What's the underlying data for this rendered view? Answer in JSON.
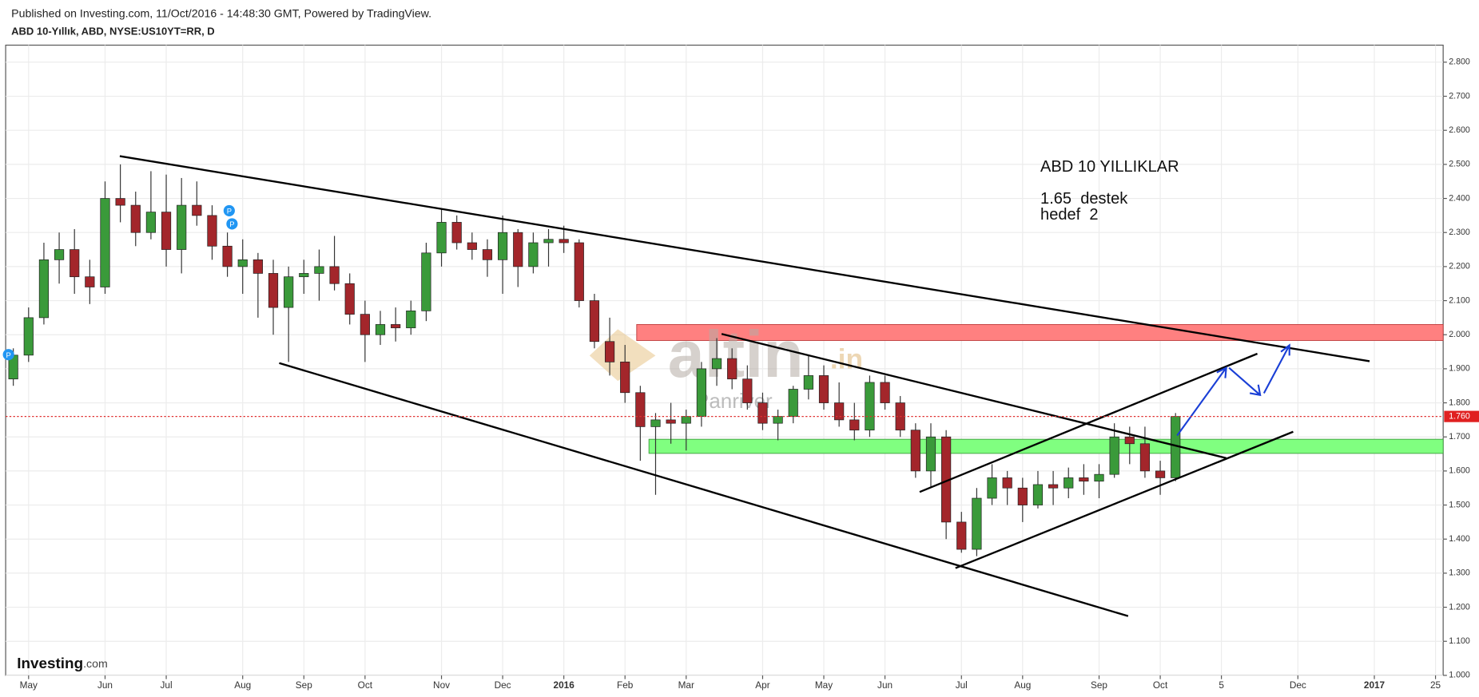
{
  "header": {
    "published": "Published on Investing.com, 11/Oct/2016 - 14:48:30 GMT, Powered by TradingView.",
    "symbol": "ABD 10-Yıllık, ABD, NYSE:US10YT=RR, D"
  },
  "chart_data": {
    "type": "candlestick",
    "categories": [
      null,
      "May",
      null,
      null,
      null,
      null,
      "Jun",
      null,
      null,
      null,
      "Jul",
      null,
      null,
      null,
      null,
      "Aug",
      null,
      null,
      null,
      "Sep",
      null,
      null,
      null,
      "Oct",
      null,
      null,
      null,
      null,
      "Nov",
      null,
      null,
      null,
      "Dec",
      null,
      null,
      null,
      "2016",
      null,
      null,
      null,
      "Feb",
      null,
      null,
      null,
      "Mar",
      null,
      null,
      null,
      null,
      "Apr",
      null,
      null,
      null,
      "May",
      null,
      null,
      null,
      "Jun",
      null,
      null,
      null,
      null,
      "Jul",
      null,
      null,
      null,
      "Aug",
      null,
      null,
      null,
      null,
      "Sep",
      null,
      null,
      null,
      "Oct",
      null,
      null,
      null,
      "5",
      null,
      null,
      null,
      null,
      "Dec",
      null,
      null,
      null,
      null,
      "2017",
      null,
      null,
      null,
      "25"
    ],
    "open": [
      1.87,
      1.94,
      2.05,
      2.22,
      2.25,
      2.17,
      2.14,
      2.4,
      2.38,
      2.3,
      2.36,
      2.25,
      2.38,
      2.35,
      2.26,
      2.2,
      2.22,
      2.18,
      2.08,
      2.17,
      2.18,
      2.2,
      2.15,
      2.06,
      2.0,
      2.03,
      2.02,
      2.07,
      2.24,
      2.33,
      2.27,
      2.25,
      2.22,
      2.3,
      2.2,
      2.27,
      2.28,
      2.27,
      2.1,
      1.98,
      1.92,
      1.83,
      1.73,
      1.75,
      1.74,
      1.76,
      1.9,
      1.93,
      1.87,
      1.8,
      1.74,
      1.76,
      1.84,
      1.88,
      1.8,
      1.75,
      1.72,
      1.86,
      1.8,
      1.72,
      1.6,
      1.7,
      1.45,
      1.37,
      1.52,
      1.58,
      1.55,
      1.5,
      1.56,
      1.55,
      1.58,
      1.57,
      1.59,
      1.7,
      1.68,
      1.6,
      1.58,
      null,
      null,
      null,
      null,
      null,
      null,
      null,
      null,
      null,
      null,
      null,
      null,
      null,
      null,
      null,
      null,
      null
    ],
    "high": [
      1.96,
      2.08,
      2.27,
      2.3,
      2.31,
      2.22,
      2.45,
      2.5,
      2.42,
      2.48,
      2.47,
      2.46,
      2.45,
      2.38,
      2.3,
      2.28,
      2.24,
      2.22,
      2.2,
      2.22,
      2.25,
      2.29,
      2.18,
      2.1,
      2.07,
      2.08,
      2.1,
      2.27,
      2.37,
      2.35,
      2.3,
      2.28,
      2.35,
      2.31,
      2.3,
      2.31,
      2.32,
      2.28,
      2.12,
      2.05,
      1.97,
      1.85,
      1.77,
      1.8,
      1.78,
      1.92,
      1.99,
      1.96,
      1.91,
      1.83,
      1.78,
      1.85,
      1.94,
      1.91,
      1.86,
      1.8,
      1.88,
      1.88,
      1.82,
      1.74,
      1.74,
      1.72,
      1.48,
      1.55,
      1.62,
      1.6,
      1.58,
      1.6,
      1.6,
      1.61,
      1.62,
      1.62,
      1.74,
      1.73,
      1.73,
      1.63,
      1.77,
      null,
      null,
      null,
      null,
      null,
      null,
      null,
      null,
      null,
      null,
      null,
      null,
      null,
      null,
      null,
      null,
      null
    ],
    "low": [
      1.85,
      1.92,
      2.03,
      2.15,
      2.12,
      2.09,
      2.12,
      2.33,
      2.26,
      2.28,
      2.2,
      2.18,
      2.32,
      2.22,
      2.17,
      2.12,
      2.05,
      2.0,
      1.92,
      2.12,
      2.1,
      2.13,
      2.03,
      1.92,
      1.97,
      1.98,
      2.0,
      2.04,
      2.2,
      2.25,
      2.22,
      2.17,
      2.12,
      2.14,
      2.18,
      2.2,
      2.24,
      2.08,
      1.96,
      1.88,
      1.8,
      1.63,
      1.53,
      1.68,
      1.66,
      1.73,
      1.85,
      1.84,
      1.78,
      1.72,
      1.69,
      1.74,
      1.81,
      1.78,
      1.73,
      1.69,
      1.7,
      1.78,
      1.7,
      1.58,
      1.55,
      1.4,
      1.36,
      1.35,
      1.5,
      1.5,
      1.45,
      1.49,
      1.5,
      1.52,
      1.53,
      1.52,
      1.58,
      1.62,
      1.58,
      1.53,
      1.57,
      null,
      null,
      null,
      null,
      null,
      null,
      null,
      null,
      null,
      null,
      null,
      null,
      null,
      null,
      null,
      null,
      null
    ],
    "close": [
      1.94,
      2.05,
      2.22,
      2.25,
      2.17,
      2.14,
      2.4,
      2.38,
      2.3,
      2.36,
      2.25,
      2.38,
      2.35,
      2.26,
      2.2,
      2.22,
      2.18,
      2.08,
      2.17,
      2.18,
      2.2,
      2.15,
      2.06,
      2.0,
      2.03,
      2.02,
      2.07,
      2.24,
      2.33,
      2.27,
      2.25,
      2.22,
      2.3,
      2.2,
      2.27,
      2.28,
      2.27,
      2.1,
      1.98,
      1.92,
      1.83,
      1.73,
      1.75,
      1.74,
      1.76,
      1.9,
      1.93,
      1.87,
      1.8,
      1.74,
      1.76,
      1.84,
      1.88,
      1.8,
      1.75,
      1.72,
      1.86,
      1.8,
      1.72,
      1.6,
      1.7,
      1.45,
      1.37,
      1.52,
      1.58,
      1.55,
      1.5,
      1.56,
      1.55,
      1.58,
      1.57,
      1.59,
      1.7,
      1.68,
      1.6,
      1.58,
      1.76,
      null,
      null,
      null,
      null,
      null,
      null,
      null,
      null,
      null,
      null,
      null,
      null,
      null,
      null,
      null,
      null,
      null
    ],
    "up_color": "#3a9a3a",
    "down_color": "#a3262b",
    "ylim": [
      1.0,
      2.85
    ],
    "yticks": [
      {
        "value": 1.0,
        "label": "1.000"
      },
      {
        "value": 1.1,
        "label": "1.100"
      },
      {
        "value": 1.2,
        "label": "1.200"
      },
      {
        "value": 1.3,
        "label": "1.300"
      },
      {
        "value": 1.4,
        "label": "1.400"
      },
      {
        "value": 1.5,
        "label": "1.500"
      },
      {
        "value": 1.6,
        "label": "1.600"
      },
      {
        "value": 1.7,
        "label": "1.700"
      },
      {
        "value": 1.8,
        "label": "1.800"
      },
      {
        "value": 1.9,
        "label": "1.900"
      },
      {
        "value": 2.0,
        "label": "2.000"
      },
      {
        "value": 2.1,
        "label": "2.100"
      },
      {
        "value": 2.2,
        "label": "2.200"
      },
      {
        "value": 2.3,
        "label": "2.300"
      },
      {
        "value": 2.4,
        "label": "2.400"
      },
      {
        "value": 2.5,
        "label": "2.500"
      },
      {
        "value": 2.6,
        "label": "2.600"
      },
      {
        "value": 2.7,
        "label": "2.700"
      },
      {
        "value": 2.8,
        "label": "2.800"
      }
    ],
    "last_price": {
      "value": 1.76,
      "label": "1.760"
    },
    "grid": true,
    "annotations": [
      "ABD 10 YILLIKLAR",
      "1.65  destek",
      "hedef  2"
    ]
  },
  "watermark": {
    "brand": "altin",
    "suffix": ".in",
    "author": "Panriver"
  },
  "logo": {
    "name": "Investing",
    "suffix": ".com"
  }
}
